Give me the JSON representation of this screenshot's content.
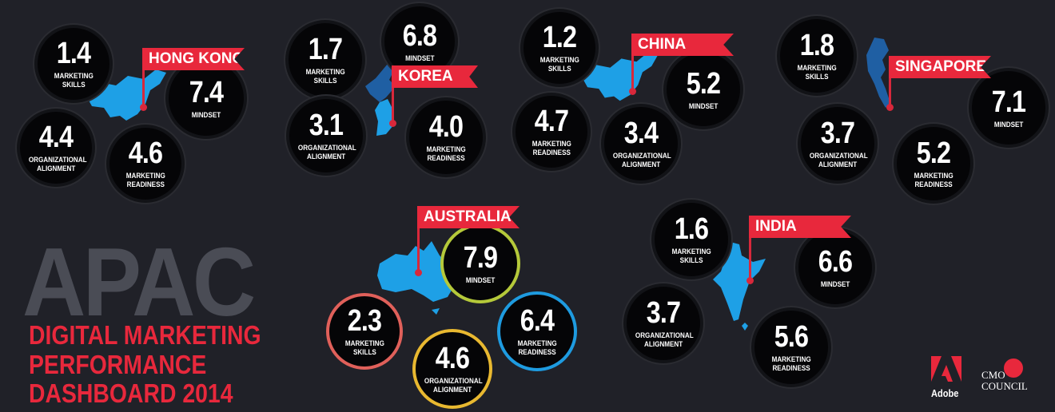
{
  "countries": [
    {
      "name": "HONG KONG",
      "metrics": [
        {
          "value": "1.4",
          "label": "MARKETING SKILLS"
        },
        {
          "value": "7.4",
          "label": "MINDSET"
        },
        {
          "value": "4.4",
          "label": "ORGANIZATIONAL ALIGNMENT"
        },
        {
          "value": "4.6",
          "label": "MARKETING READINESS"
        }
      ]
    },
    {
      "name": "KOREA",
      "metrics": [
        {
          "value": "1.7",
          "label": "MARKETING SKILLS"
        },
        {
          "value": "6.8",
          "label": "MINDSET"
        },
        {
          "value": "3.1",
          "label": "ORGANIZATIONAL ALIGNMENT"
        },
        {
          "value": "4.0",
          "label": "MARKETING READINESS"
        }
      ]
    },
    {
      "name": "CHINA",
      "metrics": [
        {
          "value": "1.2",
          "label": "MARKETING SKILLS"
        },
        {
          "value": "5.2",
          "label": "MINDSET"
        },
        {
          "value": "4.7",
          "label": "MARKETING READINESS"
        },
        {
          "value": "3.4",
          "label": "ORGANIZATIONAL ALIGNMENT"
        }
      ]
    },
    {
      "name": "SINGAPORE",
      "metrics": [
        {
          "value": "1.8",
          "label": "MARKETING SKILLS"
        },
        {
          "value": "7.1",
          "label": "MINDSET"
        },
        {
          "value": "3.7",
          "label": "ORGANIZATIONAL ALIGNMENT"
        },
        {
          "value": "5.2",
          "label": "MARKETING READINESS"
        }
      ]
    },
    {
      "name": "AUSTRALIA",
      "metrics": [
        {
          "value": "7.9",
          "label": "MINDSET",
          "ring": "#b5c93a"
        },
        {
          "value": "2.3",
          "label": "MARKETING SKILLS",
          "ring": "#e0605a"
        },
        {
          "value": "4.6",
          "label": "ORGANIZATIONAL ALIGNMENT",
          "ring": "#e8b830"
        },
        {
          "value": "6.4",
          "label": "MARKETING READINESS",
          "ring": "#1e9be0"
        }
      ]
    },
    {
      "name": "INDIA",
      "metrics": [
        {
          "value": "1.6",
          "label": "MARKETING SKILLS"
        },
        {
          "value": "6.6",
          "label": "MINDSET"
        },
        {
          "value": "3.7",
          "label": "ORGANIZATIONAL ALIGNMENT"
        },
        {
          "value": "5.6",
          "label": "MARKETING READINESS"
        }
      ]
    }
  ],
  "title": {
    "main": "APAC",
    "line1": "DIGITAL MARKETING",
    "line2": "PERFORMANCE",
    "line3": "DASHBOARD 2014"
  },
  "logos": {
    "adobe": "Adobe",
    "cmo_line1": "CMO",
    "cmo_line2": "COUNCIL"
  },
  "colors": {
    "background": "#202128",
    "flag": "#e8283c",
    "map": "#1ea0e6",
    "title_gray": "#4a4c55"
  }
}
